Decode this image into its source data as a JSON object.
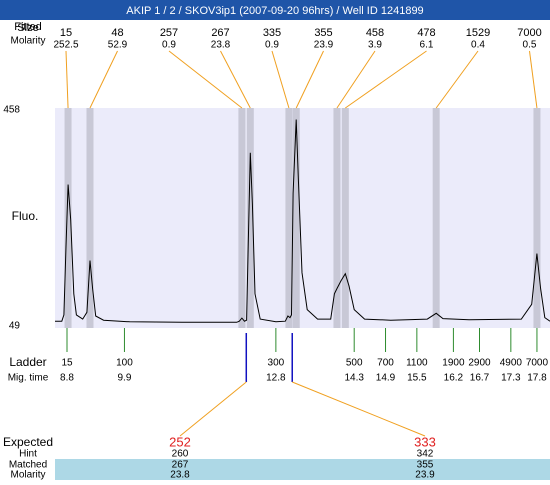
{
  "header": {
    "title": "AKIP 1 / 2 / SKOV3ip1 (2007-09-20 96hrs) / Well ID 1241899"
  },
  "row_labels": {
    "fitted": "Fitted",
    "size": "Size",
    "molarity": "Molarity",
    "ladder": "Ladder",
    "mig_time": "Mig. time"
  },
  "peaks": {
    "sizes": [
      "15",
      "48",
      "257",
      "267",
      "335",
      "355",
      "458",
      "478",
      "1529",
      "7000"
    ],
    "molarity": [
      "252.5",
      "52.9",
      "0.9",
      "23.8",
      "0.9",
      "23.9",
      "3.9",
      "6.1",
      "0.4",
      "0.5"
    ],
    "mig_time": [
      8.82,
      9.24,
      12.15,
      12.31,
      13.05,
      13.19,
      13.97,
      14.13,
      15.87,
      17.8
    ]
  },
  "chart_data": {
    "type": "line",
    "y_label": "Fluo.",
    "x": [
      8.57,
      8.7,
      8.74,
      8.78,
      8.82,
      8.87,
      8.93,
      8.98,
      9.1,
      9.18,
      9.24,
      9.29,
      9.35,
      9.5,
      10,
      11,
      12.05,
      12.1,
      12.15,
      12.2,
      12.24,
      12.27,
      12.31,
      12.35,
      12.4,
      12.5,
      12.8,
      12.98,
      13.03,
      13.07,
      13.1,
      13.13,
      13.19,
      13.23,
      13.3,
      13.4,
      13.6,
      13.85,
      13.92,
      13.97,
      14.05,
      14.13,
      14.2,
      14.3,
      14.5,
      15,
      15.7,
      15.87,
      16.0,
      16.5,
      17.5,
      17.7,
      17.8,
      17.87,
      17.95,
      18.05
    ],
    "series": [
      {
        "name": "Fluo.",
        "color": "#000000",
        "values": [
          58,
          58,
          70,
          200,
          317,
          250,
          110,
          70,
          62,
          75,
          173,
          120,
          68,
          60,
          57,
          56,
          56,
          58,
          64,
          58,
          60,
          200,
          377,
          280,
          110,
          62,
          57,
          58,
          68,
          65,
          70,
          300,
          440,
          330,
          150,
          80,
          62,
          62,
          110,
          120,
          135,
          148,
          125,
          80,
          62,
          60,
          62,
          73,
          63,
          61,
          62,
          90,
          186,
          120,
          65,
          58
        ]
      }
    ],
    "xlim": [
      8.57,
      18.05
    ],
    "ylim": [
      49,
      458
    ],
    "yticks": [
      458,
      49
    ]
  },
  "ladder": {
    "sizes": [
      "15",
      "100",
      "300",
      "500",
      "700",
      "1100",
      "1900",
      "2900",
      "4900",
      "7000"
    ],
    "mig_times": [
      8.8,
      9.9,
      12.8,
      14.3,
      14.9,
      15.5,
      16.2,
      16.7,
      17.3,
      17.8
    ]
  },
  "expected": {
    "labels": {
      "expected": "Expected",
      "hint": "Hint",
      "matched": "Matched",
      "molarity": "Molarity"
    },
    "items": [
      {
        "expected": "252",
        "hint": "260",
        "matched": "267",
        "molarity": "23.8"
      },
      {
        "expected": "333",
        "hint": "342",
        "matched": "355",
        "molarity": "23.9"
      }
    ]
  }
}
